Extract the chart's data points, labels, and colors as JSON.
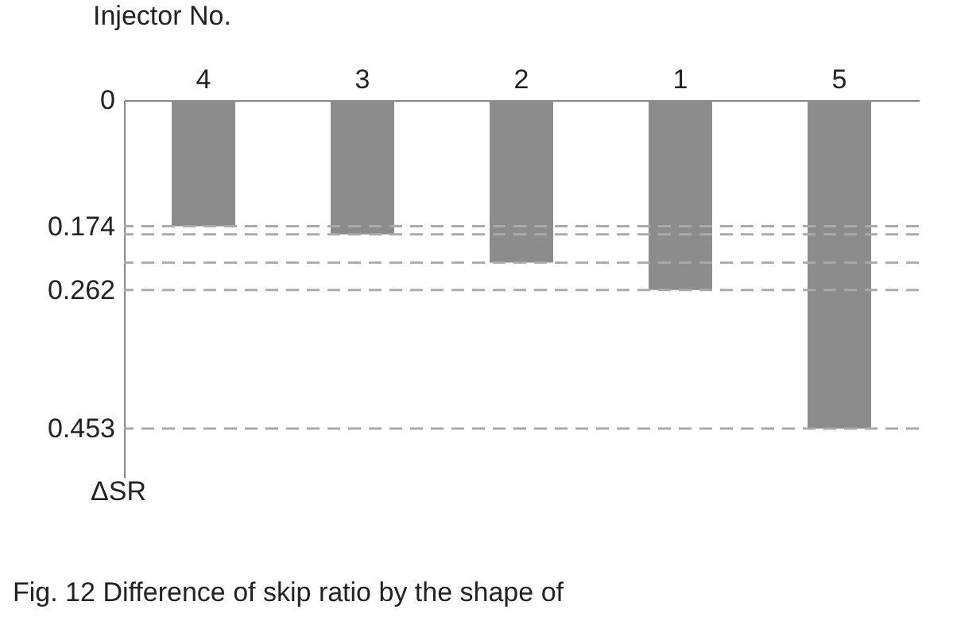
{
  "chart_data": {
    "type": "bar",
    "xlabel": "Injector No.",
    "ylabel": "ΔSR",
    "categories": [
      "4",
      "3",
      "2",
      "1",
      "5"
    ],
    "values": [
      0.174,
      0.185,
      0.224,
      0.262,
      0.453
    ],
    "color": "#8c8c8c",
    "ylim": [
      0.52,
      0
    ],
    "yticks": [
      0,
      0.174,
      0.262,
      0.453
    ],
    "grid": false,
    "ref_lines": [
      {
        "axis": "y",
        "value": 0.174,
        "label": null,
        "color": "#aaaaaa",
        "line_style": "dashed"
      },
      {
        "axis": "y",
        "value": 0.185,
        "label": null,
        "color": "#aaaaaa",
        "line_style": "dashed"
      },
      {
        "axis": "y",
        "value": 0.224,
        "label": null,
        "color": "#aaaaaa",
        "line_style": "dashed"
      },
      {
        "axis": "y",
        "value": 0.262,
        "label": null,
        "color": "#aaaaaa",
        "line_style": "dashed"
      },
      {
        "axis": "y",
        "value": 0.453,
        "label": null,
        "color": "#aaaaaa",
        "line_style": "dashed"
      }
    ],
    "annotations": [
      "Fig. 12 Difference of skip ratio by the shape of"
    ]
  }
}
